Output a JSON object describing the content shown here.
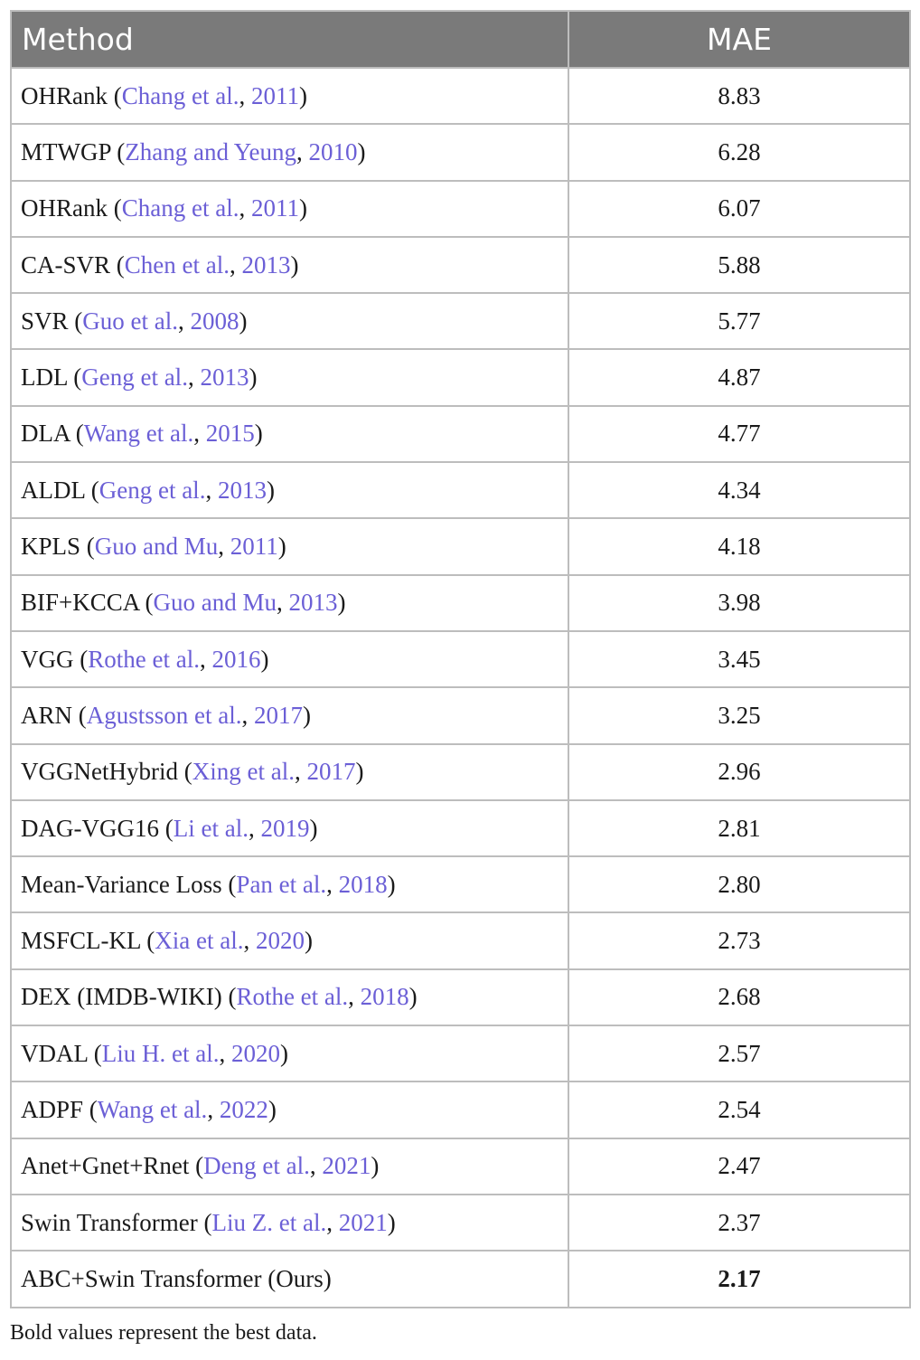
{
  "table": {
    "headers": [
      "Method",
      "MAE"
    ],
    "rows": [
      {
        "method": "OHRank",
        "cite_author": "Chang et al.",
        "cite_year": "2011",
        "mae": "8.83",
        "best": false
      },
      {
        "method": "MTWGP",
        "cite_author": "Zhang and Yeung",
        "cite_year": "2010",
        "mae": "6.28",
        "best": false
      },
      {
        "method": "OHRank",
        "cite_author": "Chang et al.",
        "cite_year": "2011",
        "mae": "6.07",
        "best": false
      },
      {
        "method": "CA-SVR",
        "cite_author": "Chen et al.",
        "cite_year": "2013",
        "mae": "5.88",
        "best": false
      },
      {
        "method": "SVR",
        "cite_author": "Guo et al.",
        "cite_year": "2008",
        "mae": "5.77",
        "best": false
      },
      {
        "method": "LDL",
        "cite_author": "Geng et al.",
        "cite_year": "2013",
        "mae": "4.87",
        "best": false
      },
      {
        "method": "DLA",
        "cite_author": "Wang et al.",
        "cite_year": "2015",
        "mae": "4.77",
        "best": false
      },
      {
        "method": "ALDL",
        "cite_author": "Geng et al.",
        "cite_year": "2013",
        "mae": "4.34",
        "best": false
      },
      {
        "method": "KPLS",
        "cite_author": "Guo and Mu",
        "cite_year": "2011",
        "mae": "4.18",
        "best": false
      },
      {
        "method": "BIF+KCCA",
        "cite_author": "Guo and Mu",
        "cite_year": "2013",
        "mae": "3.98",
        "best": false
      },
      {
        "method": "VGG",
        "cite_author": "Rothe et al.",
        "cite_year": "2016",
        "mae": "3.45",
        "best": false
      },
      {
        "method": "ARN",
        "cite_author": "Agustsson et al.",
        "cite_year": "2017",
        "mae": "3.25",
        "best": false
      },
      {
        "method": "VGGNetHybrid",
        "cite_author": "Xing et al.",
        "cite_year": "2017",
        "mae": "2.96",
        "best": false
      },
      {
        "method": "DAG-VGG16",
        "cite_author": "Li et al.",
        "cite_year": "2019",
        "mae": "2.81",
        "best": false
      },
      {
        "method": "Mean-Variance Loss",
        "cite_author": "Pan et al.",
        "cite_year": "2018",
        "mae": "2.80",
        "best": false
      },
      {
        "method": "MSFCL-KL",
        "cite_author": "Xia et al.",
        "cite_year": "2020",
        "mae": "2.73",
        "best": false
      },
      {
        "method": "DEX (IMDB-WIKI)",
        "cite_author": "Rothe et al.",
        "cite_year": "2018",
        "mae": "2.68",
        "best": false
      },
      {
        "method": "VDAL",
        "cite_author": "Liu H. et al.",
        "cite_year": "2020",
        "mae": "2.57",
        "best": false
      },
      {
        "method": "ADPF",
        "cite_author": "Wang et al.",
        "cite_year": "2022",
        "mae": "2.54",
        "best": false
      },
      {
        "method": "Anet+Gnet+Rnet",
        "cite_author": "Deng et al.",
        "cite_year": "2021",
        "mae": "2.47",
        "best": false
      },
      {
        "method": "Swin Transformer",
        "cite_author": "Liu Z. et al.",
        "cite_year": "2021",
        "mae": "2.37",
        "best": false
      },
      {
        "method": "ABC+Swin Transformer (Ours)",
        "cite_author": "",
        "cite_year": "",
        "mae": "2.17",
        "best": true
      }
    ]
  },
  "footnote": "Bold values represent the best data.",
  "colors": {
    "header_bg": "#7a7a7a",
    "citation": "#6b5fd6",
    "border": "#bdbdbd"
  }
}
